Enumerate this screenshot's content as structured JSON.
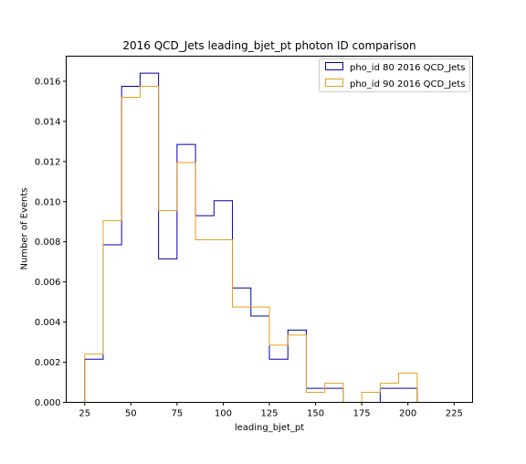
{
  "chart_data": {
    "type": "histogram-step",
    "title": "2016 QCD_Jets leading_bjet_pt photon ID comparison",
    "xlabel": "leading_bjet_pt",
    "ylabel": "Number of Events",
    "xlim": [
      15,
      235
    ],
    "ylim": [
      0,
      0.01725
    ],
    "xticks": [
      25,
      50,
      75,
      100,
      125,
      150,
      175,
      200,
      225
    ],
    "yticks": [
      0.0,
      0.002,
      0.004,
      0.006,
      0.008,
      0.01,
      0.012,
      0.014,
      0.016
    ],
    "ytick_labels": [
      "0.000",
      "0.002",
      "0.004",
      "0.006",
      "0.008",
      "0.010",
      "0.012",
      "0.014",
      "0.016"
    ],
    "bin_edges": [
      25,
      35,
      45,
      55,
      65,
      75,
      85,
      95,
      105,
      115,
      125,
      135,
      145,
      155,
      165,
      175,
      185,
      195,
      205
    ],
    "grid": false,
    "legend_position": "top-right",
    "series": [
      {
        "name": "pho_id 80 2016 QCD_Jets",
        "color": "#0000b4",
        "values": [
          0.00215,
          0.00785,
          0.01575,
          0.0164,
          0.00715,
          0.01285,
          0.0093,
          0.01005,
          0.0057,
          0.0043,
          0.00215,
          0.0036,
          0.0007,
          0.0007,
          0.0,
          0.0,
          0.0007,
          0.0007
        ]
      },
      {
        "name": "pho_id 90 2016 QCD_Jets",
        "color": "#e6a01e",
        "values": [
          0.0024,
          0.00905,
          0.0152,
          0.01575,
          0.00955,
          0.01195,
          0.0081,
          0.0081,
          0.00475,
          0.00475,
          0.00285,
          0.00335,
          0.0005,
          0.00095,
          0.0,
          0.0005,
          0.00095,
          0.00145
        ]
      }
    ]
  }
}
